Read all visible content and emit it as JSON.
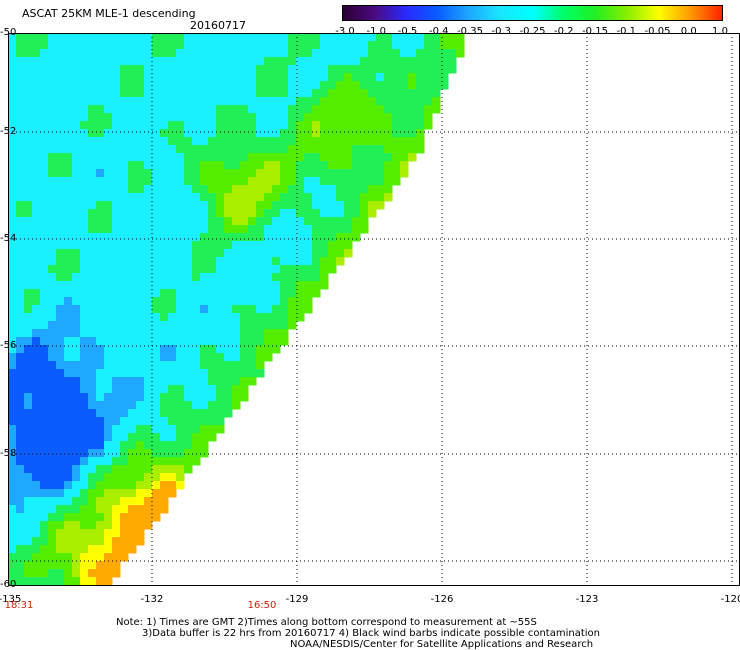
{
  "header": {
    "title": "ASCAT 25KM MLE-1 descending",
    "date": "20160717"
  },
  "colorbar": {
    "labels": [
      "-3.0",
      "-1.0",
      "-0.5",
      "-0.4",
      "-0.35",
      "-0.3",
      "-0.25",
      "-0.2",
      "-0.15",
      "-0.1",
      "-0.05",
      "0.0",
      "1.0"
    ],
    "colors": [
      "#2a0033",
      "#4b0a80",
      "#2a2aff",
      "#0a5cff",
      "#1ea8ff",
      "#19e6ff",
      "#00ffff",
      "#00ff66",
      "#22ee22",
      "#88ee00",
      "#ffff00",
      "#ff9900",
      "#ff2200"
    ]
  },
  "axes": {
    "lat_labels": [
      "-50",
      "-52",
      "-54",
      "-56",
      "-58",
      "-60"
    ],
    "lon_labels": [
      "-135",
      "-132",
      "-129",
      "-126",
      "-123",
      "-120"
    ],
    "time_labels": [
      "18:31",
      "16:50"
    ]
  },
  "notes": {
    "line1": "Note: 1) Times are GMT 2)Times along bottom correspond to measurement at ~55S",
    "line2": "3)Data buffer is 22 hrs from 20160717 4) Black wind barbs indicate possible contamination",
    "line3": "NOAA/NESDIS/Center for Satellite Applications and Research"
  }
}
